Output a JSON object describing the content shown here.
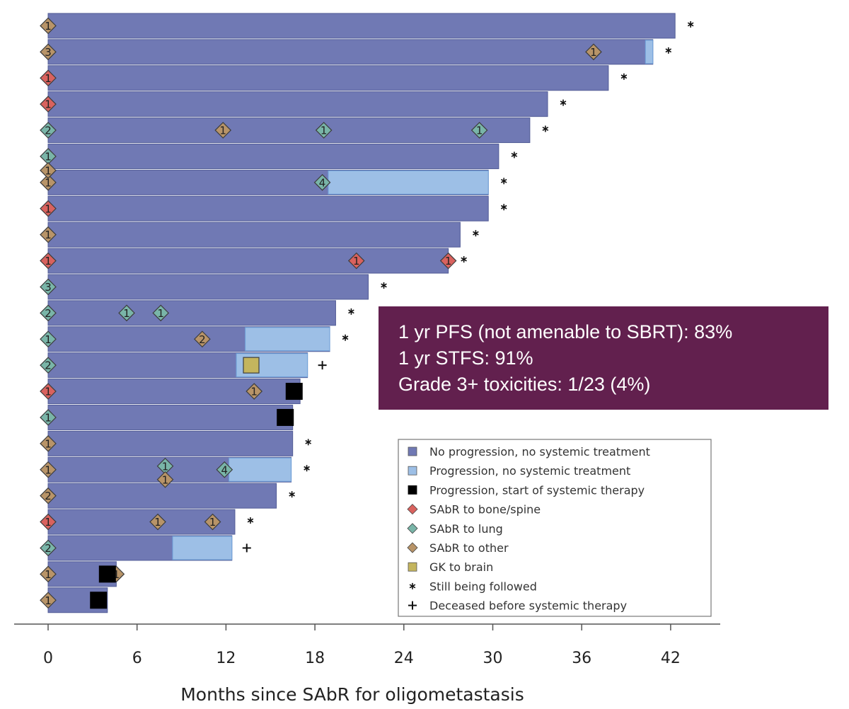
{
  "chart_data": {
    "type": "bar",
    "orientation": "horizontal",
    "title": "",
    "xlabel": "Months since SAbR for oligometastasis",
    "ylabel": "",
    "xlim": [
      -2.2,
      45.5
    ],
    "x_ticks": [
      0,
      6,
      12,
      18,
      24,
      30,
      36,
      42
    ],
    "grid": false,
    "colors": {
      "no_progression": "#7079b4",
      "progression_no_systemic": "#9dbfe6",
      "systemic_start": "#000000",
      "sabr_bone": "#d9625e",
      "sabr_lung": "#79b5a8",
      "sabr_other": "#b89468",
      "gk_brain": "#c4b55e"
    },
    "patients": [
      {
        "end": 42.3,
        "initial": {
          "site": "other",
          "label": "1"
        },
        "outcome": "still_followed",
        "progression": null,
        "systemic_start": null,
        "events": []
      },
      {
        "end": 40.8,
        "initial": {
          "site": "other",
          "label": "3"
        },
        "outcome": "still_followed",
        "progression": [
          40.3,
          40.8
        ],
        "systemic_start": null,
        "events": [
          {
            "x": 36.8,
            "site": "other",
            "label": "1"
          }
        ]
      },
      {
        "end": 37.8,
        "initial": {
          "site": "bone",
          "label": "1"
        },
        "outcome": "still_followed",
        "progression": null,
        "systemic_start": null,
        "events": []
      },
      {
        "end": 33.7,
        "initial": {
          "site": "bone",
          "label": "1"
        },
        "outcome": "still_followed",
        "progression": null,
        "systemic_start": null,
        "events": []
      },
      {
        "end": 32.5,
        "initial": {
          "site": "lung",
          "label": "2"
        },
        "outcome": "still_followed",
        "progression": null,
        "systemic_start": null,
        "events": [
          {
            "x": 11.8,
            "site": "other",
            "label": "1"
          },
          {
            "x": 18.6,
            "site": "lung",
            "label": "1"
          },
          {
            "x": 29.1,
            "site": "lung",
            "label": "1"
          }
        ]
      },
      {
        "end": 30.4,
        "initial": {
          "site": "lung",
          "label": "1"
        },
        "outcome": "still_followed",
        "progression": null,
        "systemic_start": null,
        "events": []
      },
      {
        "end": 29.7,
        "initial": {
          "site": "other",
          "label": "1"
        },
        "outcome": "still_followed",
        "progression": [
          18.9,
          29.7
        ],
        "systemic_start": null,
        "events": [
          {
            "x": 18.5,
            "site": "lung",
            "label": "4"
          }
        ],
        "extra_initial": {
          "site": "other",
          "label": "1"
        }
      },
      {
        "end": 29.7,
        "initial": {
          "site": "bone",
          "label": "1"
        },
        "outcome": "still_followed",
        "progression": null,
        "systemic_start": null,
        "events": []
      },
      {
        "end": 27.8,
        "initial": {
          "site": "other",
          "label": "1"
        },
        "outcome": "still_followed",
        "progression": null,
        "systemic_start": null,
        "events": []
      },
      {
        "end": 27.0,
        "initial": {
          "site": "bone",
          "label": "1"
        },
        "outcome": "still_followed",
        "progression": null,
        "systemic_start": null,
        "events": [
          {
            "x": 20.8,
            "site": "bone",
            "label": "1"
          },
          {
            "x": 27.0,
            "site": "bone",
            "label": "1"
          }
        ]
      },
      {
        "end": 21.6,
        "initial": {
          "site": "lung",
          "label": "3"
        },
        "outcome": "still_followed",
        "progression": null,
        "systemic_start": null,
        "events": []
      },
      {
        "end": 19.4,
        "initial": {
          "site": "lung",
          "label": "2"
        },
        "outcome": "still_followed",
        "progression": null,
        "systemic_start": null,
        "events": [
          {
            "x": 5.3,
            "site": "lung",
            "label": "1"
          },
          {
            "x": 7.6,
            "site": "lung",
            "label": "1"
          }
        ]
      },
      {
        "end": 19.0,
        "initial": {
          "site": "lung",
          "label": "1"
        },
        "outcome": "still_followed",
        "progression": [
          13.3,
          19.0
        ],
        "systemic_start": null,
        "events": [
          {
            "x": 10.4,
            "site": "other",
            "label": "2"
          }
        ]
      },
      {
        "end": 17.5,
        "initial": {
          "site": "lung",
          "label": "2"
        },
        "outcome": "deceased",
        "progression": [
          12.7,
          17.5
        ],
        "systemic_start": null,
        "events": [
          {
            "x": 13.7,
            "site": "gk",
            "label": ""
          }
        ]
      },
      {
        "end": 17.0,
        "initial": {
          "site": "bone",
          "label": "1"
        },
        "outcome": "systemic",
        "progression": null,
        "systemic_start": 16.6,
        "events": [
          {
            "x": 13.9,
            "site": "other",
            "label": "1"
          }
        ]
      },
      {
        "end": 16.5,
        "initial": {
          "site": "lung",
          "label": "1"
        },
        "outcome": "systemic",
        "progression": null,
        "systemic_start": 16.0,
        "events": []
      },
      {
        "end": 16.5,
        "initial": {
          "site": "other",
          "label": "1"
        },
        "outcome": "still_followed",
        "progression": null,
        "systemic_start": null,
        "events": []
      },
      {
        "end": 16.4,
        "initial": {
          "site": "other",
          "label": "1"
        },
        "outcome": "still_followed",
        "progression": [
          12.2,
          16.4
        ],
        "systemic_start": null,
        "events": [
          {
            "x": 7.9,
            "site": "lung",
            "label": "1"
          },
          {
            "x": 7.9,
            "site": "other",
            "label": "1"
          },
          {
            "x": 11.9,
            "site": "lung",
            "label": "4"
          }
        ]
      },
      {
        "end": 15.4,
        "initial": {
          "site": "other",
          "label": "2"
        },
        "outcome": "still_followed",
        "progression": null,
        "systemic_start": null,
        "events": []
      },
      {
        "end": 12.6,
        "initial": {
          "site": "bone",
          "label": "1"
        },
        "outcome": "still_followed",
        "progression": null,
        "systemic_start": null,
        "events": [
          {
            "x": 7.4,
            "site": "other",
            "label": "1"
          },
          {
            "x": 11.1,
            "site": "other",
            "label": "1"
          }
        ]
      },
      {
        "end": 12.4,
        "initial": {
          "site": "lung",
          "label": "2"
        },
        "outcome": "deceased",
        "progression": [
          8.4,
          12.4
        ],
        "systemic_start": null,
        "events": []
      },
      {
        "end": 4.6,
        "initial": {
          "site": "other",
          "label": "1"
        },
        "outcome": "systemic",
        "progression": null,
        "systemic_start": 4.0,
        "events": [
          {
            "x": 4.6,
            "site": "other",
            "label": "1"
          }
        ]
      },
      {
        "end": 4.0,
        "initial": {
          "site": "other",
          "label": "1"
        },
        "outcome": "systemic",
        "progression": null,
        "systemic_start": 3.4,
        "events": []
      }
    ],
    "legend": {
      "placement": "bottom-right",
      "items": [
        {
          "key": "no_progression",
          "label": "No progression, no systemic treatment",
          "symbol": "square"
        },
        {
          "key": "progression_no_systemic",
          "label": "Progression, no systemic treatment",
          "symbol": "square"
        },
        {
          "key": "systemic_start",
          "label": "Progression, start of systemic therapy",
          "symbol": "square"
        },
        {
          "key": "sabr_bone",
          "label": "SAbR to bone/spine",
          "symbol": "diamond"
        },
        {
          "key": "sabr_lung",
          "label": "SAbR to lung",
          "symbol": "diamond"
        },
        {
          "key": "sabr_other",
          "label": "SAbR to other",
          "symbol": "diamond"
        },
        {
          "key": "gk_brain",
          "label": "GK to brain",
          "symbol": "square"
        },
        {
          "key": "still_followed",
          "label": "Still being followed",
          "symbol": "star"
        },
        {
          "key": "deceased",
          "label": "Deceased before systemic therapy",
          "symbol": "plus"
        }
      ]
    }
  },
  "stats_box": {
    "lines": [
      "1 yr PFS (not amenable to SBRT): 83%",
      "1 yr STFS: 91%",
      "Grade 3+ toxicities: 1/23 (4%)"
    ]
  }
}
